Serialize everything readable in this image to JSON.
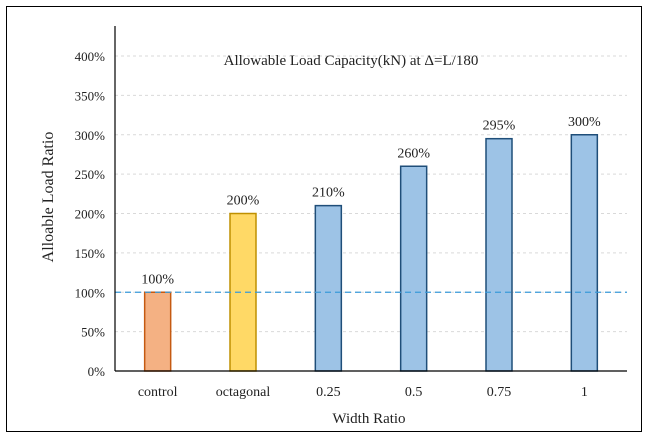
{
  "chart_data": {
    "type": "bar",
    "title": "Allowable Load Capacity(kN)  at Δ=L/180",
    "xlabel": "Width Ratio",
    "ylabel": "Alloable  Load Ratio",
    "categories": [
      "control",
      "octagonal",
      "0.25",
      "0.5",
      "0.75",
      "1"
    ],
    "values": [
      100,
      200,
      210,
      260,
      295,
      300
    ],
    "data_labels": [
      "100%",
      "200%",
      "210%",
      "260%",
      "295%",
      "300%"
    ],
    "ylim": [
      0,
      400
    ],
    "yticks": [
      0,
      50,
      100,
      150,
      200,
      250,
      300,
      350,
      400
    ],
    "ytick_labels": [
      "0%",
      "50%",
      "100%",
      "150%",
      "200%",
      "250%",
      "300%",
      "350%",
      "400%"
    ],
    "grid": true,
    "reference_line": {
      "value": 100,
      "style": "dashed",
      "color": "#3a9ad9"
    },
    "colors": {
      "fills": [
        "#f4b183",
        "#ffd966",
        "#9dc3e6",
        "#9dc3e6",
        "#9dc3e6",
        "#9dc3e6"
      ],
      "strokes": [
        "#c55a11",
        "#bf9000",
        "#1f4e79",
        "#1f4e79",
        "#1f4e79",
        "#1f4e79"
      ]
    }
  }
}
